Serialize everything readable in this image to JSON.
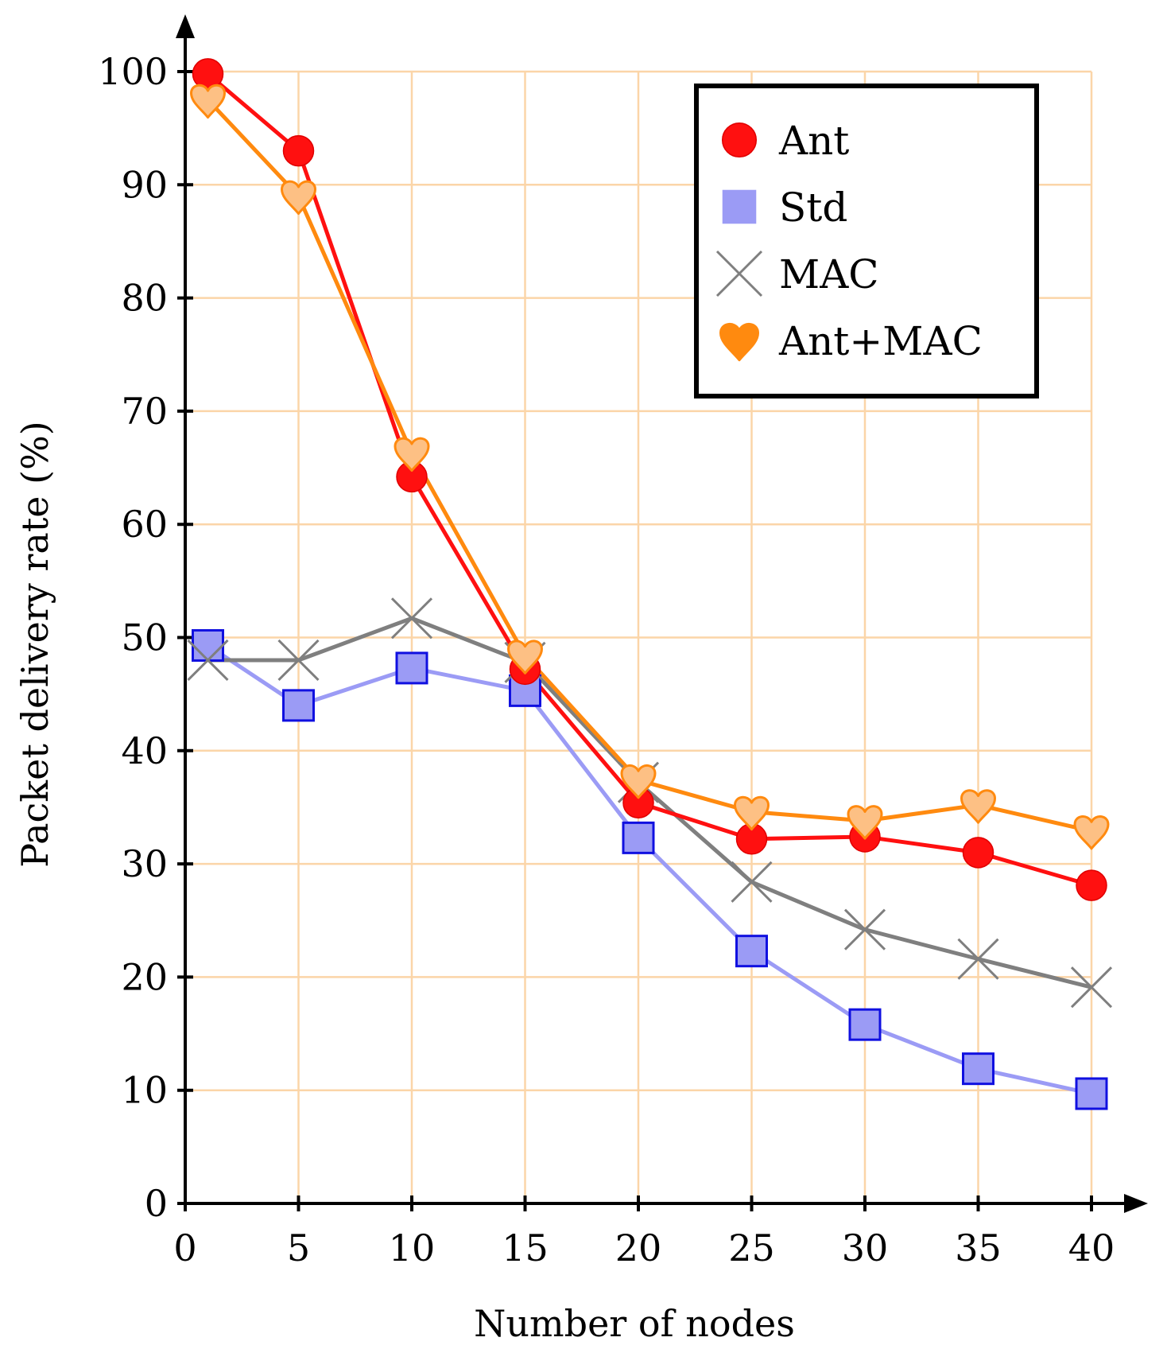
{
  "chart_data": {
    "type": "line",
    "title": "",
    "xlabel": "Number of nodes",
    "ylabel": "Packet delivery rate (%)",
    "xlim": [
      0,
      40
    ],
    "ylim": [
      0,
      100
    ],
    "x_ticks": [
      0,
      5,
      10,
      15,
      20,
      25,
      30,
      35,
      40
    ],
    "y_ticks": [
      0,
      10,
      20,
      30,
      40,
      50,
      60,
      70,
      80,
      90,
      100
    ],
    "grid": true,
    "grid_color": "#fbd5a8",
    "legend_position": "top-right",
    "x": [
      1,
      5,
      10,
      15,
      20,
      25,
      30,
      35,
      40
    ],
    "series": [
      {
        "name": "Ant",
        "marker": "circle",
        "color": "#ff1010",
        "values": [
          99.8,
          93.0,
          64.2,
          47.2,
          35.4,
          32.2,
          32.4,
          31.0,
          28.1
        ]
      },
      {
        "name": "Std",
        "marker": "square",
        "color": "#9b9bf5",
        "values": [
          49.3,
          44.0,
          47.3,
          45.3,
          32.3,
          22.3,
          15.8,
          11.9,
          9.7
        ]
      },
      {
        "name": "MAC",
        "marker": "cross",
        "color": "#7f7f7f",
        "values": [
          48.0,
          48.0,
          51.7,
          47.8,
          37.2,
          28.4,
          24.2,
          21.6,
          19.1
        ]
      },
      {
        "name": "Ant+MAC",
        "marker": "heart",
        "color": "#ff8a0f",
        "values": [
          97.5,
          89.0,
          66.3,
          48.4,
          37.4,
          34.6,
          33.8,
          35.2,
          32.9
        ]
      }
    ]
  }
}
